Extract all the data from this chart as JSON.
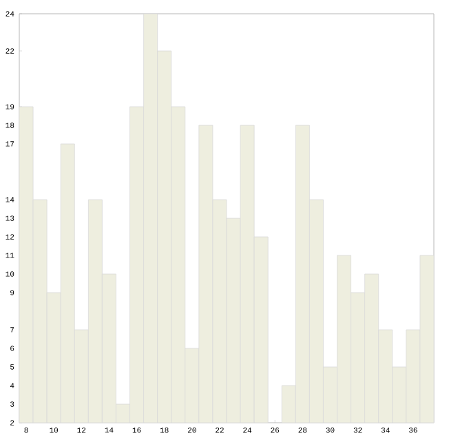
{
  "chart_data": {
    "type": "bar",
    "x": [
      8,
      9,
      10,
      11,
      12,
      13,
      14,
      15,
      16,
      17,
      18,
      19,
      20,
      21,
      22,
      23,
      24,
      25,
      26,
      27,
      28,
      29,
      30,
      31,
      32,
      33,
      34,
      35,
      36,
      37
    ],
    "values": [
      19,
      14,
      9,
      17,
      7,
      14,
      10,
      3,
      19,
      24,
      22,
      19,
      6,
      18,
      14,
      13,
      18,
      12,
      null,
      4,
      18,
      14,
      5,
      11,
      9,
      10,
      7,
      5,
      7,
      11
    ],
    "color": "#eeeedf",
    "xlim": [
      7.5,
      37.5
    ],
    "xticks": [
      8,
      10,
      12,
      14,
      16,
      18,
      20,
      22,
      24,
      26,
      28,
      30,
      32,
      34,
      36
    ],
    "ylim": [
      2,
      24
    ],
    "yticks": [
      2,
      3,
      4,
      5,
      6,
      7,
      9,
      10,
      11,
      12,
      13,
      14,
      17,
      18,
      19,
      22,
      24
    ],
    "grid": false
  }
}
